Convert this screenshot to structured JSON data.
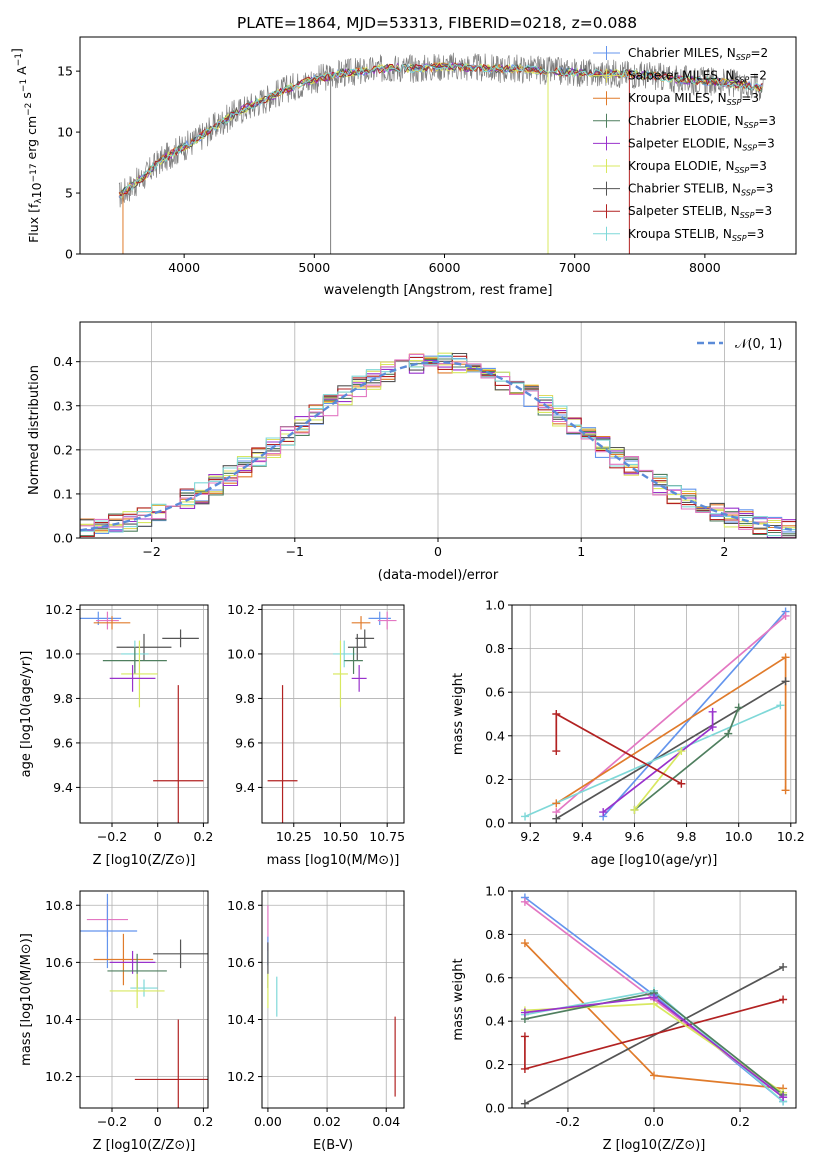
{
  "figure_title": "PLATE=1864, MJD=53313, FIBERID=0218, z=0.088",
  "colors": {
    "chabrier_miles": "#6495ED",
    "salpeter_miles": "#e0db5f",
    "kroupa_miles": "#e07b2b",
    "chabrier_elodie": "#4f7f5f",
    "salpeter_elodie": "#9932CC",
    "kroupa_elodie": "#d8e860",
    "chabrier_stelib": "#555555",
    "salpeter_stelib": "#b22222",
    "kroupa_stelib": "#7fd8d8",
    "pink": "#e377c2"
  },
  "chart_data": [
    {
      "id": "spectrum",
      "type": "line",
      "xlabel": "wavelength [Angstrom, rest frame]",
      "ylabel": "Flux [f_λ10^-17 erg cm^-2 s^-1 A^-1]",
      "xlim": [
        3200,
        8700
      ],
      "ylim": [
        0,
        17.8
      ],
      "xticks": [
        4000,
        5000,
        6000,
        7000,
        8000
      ],
      "yticks": [
        0,
        5,
        10,
        15
      ],
      "legend_position": "upper-right",
      "legend": [
        "Chabrier MILES, N_SSP=2",
        "Salpeter MILES, N_SSP=2",
        "Kroupa MILES, N_SSP=3",
        "Chabrier ELODIE, N_SSP=3",
        "Salpeter ELODIE, N_SSP=3",
        "Kroupa ELODIE, N_SSP=3",
        "Chabrier STELIB, N_SSP=3",
        "Salpeter STELIB, N_SSP=3",
        "Kroupa STELIB, N_SSP=3"
      ],
      "model_profile_x": [
        3500,
        3600,
        3700,
        3800,
        3900,
        4000,
        4100,
        4200,
        4300,
        4400,
        4600,
        4800,
        5000,
        5200,
        5400,
        5600,
        5800,
        6000,
        6200,
        6400,
        6600,
        6800,
        7000,
        7200,
        7400,
        7600,
        7800,
        8000,
        8200,
        8500
      ],
      "model_profile_y": [
        4.8,
        5.6,
        6.4,
        7.5,
        8.2,
        8.8,
        9.4,
        10.2,
        10.9,
        11.6,
        12.6,
        13.6,
        14.3,
        14.8,
        15.0,
        15.3,
        15.2,
        15.4,
        15.3,
        15.2,
        15.2,
        15.0,
        14.9,
        14.8,
        14.8,
        14.6,
        14.3,
        14.2,
        14.0,
        13.6
      ]
    },
    {
      "id": "residual_hist",
      "type": "line",
      "xlabel": "(data-model)/error",
      "ylabel": "Normed distribution",
      "xlim": [
        -2.5,
        2.5
      ],
      "ylim": [
        0,
        0.49
      ],
      "xticks": [
        -2,
        -1,
        0,
        1,
        2
      ],
      "yticks": [
        0.0,
        0.1,
        0.2,
        0.3,
        0.4
      ],
      "legend": [
        "𝒩(0, 1)"
      ],
      "legend_position": "upper-right",
      "grid": true
    },
    {
      "id": "age_vs_Z",
      "type": "scatter",
      "xlabel": "Z [log10(Z/Z⊙)]",
      "ylabel": "age [log10(age/yr)]",
      "xlim": [
        -0.34,
        0.22
      ],
      "ylim": [
        9.24,
        10.22
      ],
      "xticks": [
        -0.2,
        0.0,
        0.2
      ],
      "yticks": [
        9.4,
        9.6,
        9.8,
        10.0,
        10.2
      ],
      "grid": true,
      "points": [
        {
          "s": "chabrier_miles",
          "x": -0.26,
          "xerr": 0.1,
          "y": 10.16,
          "yerr": 0.03
        },
        {
          "s": "pink",
          "x": -0.22,
          "xerr": 0.05,
          "y": 10.15,
          "yerr": 0.04
        },
        {
          "s": "kroupa_miles",
          "x": -0.2,
          "xerr": 0.08,
          "y": 10.14,
          "yerr": 0.03
        },
        {
          "s": "chabrier_stelib",
          "x": 0.1,
          "xerr": 0.08,
          "y": 10.07,
          "yerr": 0.04
        },
        {
          "s": "chabrier_stelib",
          "x": -0.06,
          "xerr": 0.12,
          "y": 10.03,
          "yerr": 0.06
        },
        {
          "s": "kroupa_stelib",
          "x": -0.1,
          "xerr": 0.06,
          "y": 10.0,
          "yerr": 0.06
        },
        {
          "s": "chabrier_elodie",
          "x": -0.1,
          "xerr": 0.14,
          "y": 9.97,
          "yerr": 0.06
        },
        {
          "s": "kroupa_elodie",
          "x": -0.08,
          "xerr": 0.08,
          "y": 9.91,
          "yerr": 0.15
        },
        {
          "s": "salpeter_elodie",
          "x": -0.11,
          "xerr": 0.1,
          "y": 9.89,
          "yerr": 0.06
        },
        {
          "s": "salpeter_stelib",
          "x": 0.09,
          "xerr": 0.11,
          "y": 9.43,
          "yerr": 0.43
        }
      ]
    },
    {
      "id": "age_vs_mass",
      "type": "scatter",
      "xlabel": "mass [log10(M/M⊙)]",
      "xlim": [
        10.08,
        10.84
      ],
      "ylim": [
        9.24,
        10.22
      ],
      "xticks": [
        10.25,
        10.5,
        10.75
      ],
      "yticks": [
        9.4,
        9.6,
        9.8,
        10.0,
        10.2
      ],
      "grid": true,
      "points": [
        {
          "s": "chabrier_miles",
          "x": 10.71,
          "xerr": 0.06,
          "y": 10.16,
          "yerr": 0.03
        },
        {
          "s": "pink",
          "x": 10.75,
          "xerr": 0.05,
          "y": 10.15,
          "yerr": 0.04
        },
        {
          "s": "kroupa_miles",
          "x": 10.61,
          "xerr": 0.05,
          "y": 10.14,
          "yerr": 0.03
        },
        {
          "s": "chabrier_stelib",
          "x": 10.63,
          "xerr": 0.05,
          "y": 10.07,
          "yerr": 0.04
        },
        {
          "s": "chabrier_stelib",
          "x": 10.59,
          "xerr": 0.05,
          "y": 10.03,
          "yerr": 0.06
        },
        {
          "s": "kroupa_stelib",
          "x": 10.52,
          "xerr": 0.06,
          "y": 10.0,
          "yerr": 0.06
        },
        {
          "s": "chabrier_elodie",
          "x": 10.57,
          "xerr": 0.05,
          "y": 9.97,
          "yerr": 0.06
        },
        {
          "s": "kroupa_elodie",
          "x": 10.5,
          "xerr": 0.04,
          "y": 9.91,
          "yerr": 0.15
        },
        {
          "s": "salpeter_elodie",
          "x": 10.6,
          "xerr": 0.04,
          "y": 9.89,
          "yerr": 0.06
        },
        {
          "s": "salpeter_stelib",
          "x": 10.19,
          "xerr": 0.08,
          "y": 9.43,
          "yerr": 0.43
        }
      ]
    },
    {
      "id": "massweight_vs_age",
      "type": "line",
      "xlabel": "age [log10(age/yr)]",
      "ylabel": "mass weight",
      "xlim": [
        9.13,
        10.22
      ],
      "ylim": [
        0,
        1.0
      ],
      "xticks": [
        9.2,
        9.4,
        9.6,
        9.8,
        10.0,
        10.2
      ],
      "yticks": [
        0.0,
        0.2,
        0.4,
        0.6,
        0.8,
        1.0
      ],
      "grid": true,
      "series": [
        {
          "s": "chabrier_miles",
          "x": [
            9.48,
            10.18
          ],
          "y": [
            0.03,
            0.97
          ]
        },
        {
          "s": "pink",
          "x": [
            9.3,
            10.18
          ],
          "y": [
            0.05,
            0.95
          ]
        },
        {
          "s": "kroupa_miles",
          "x": [
            9.3,
            10.18,
            10.18
          ],
          "y": [
            0.09,
            0.76,
            0.15
          ]
        },
        {
          "s": "chabrier_stelib",
          "x": [
            9.3,
            10.18
          ],
          "y": [
            0.02,
            0.65
          ]
        },
        {
          "s": "kroupa_stelib",
          "x": [
            9.18,
            10.16
          ],
          "y": [
            0.03,
            0.54
          ]
        },
        {
          "s": "chabrier_elodie",
          "x": [
            9.6,
            9.96,
            10.0
          ],
          "y": [
            0.06,
            0.41,
            0.53
          ]
        },
        {
          "s": "salpeter_elodie",
          "x": [
            9.48,
            9.9,
            9.9
          ],
          "y": [
            0.05,
            0.44,
            0.51
          ]
        },
        {
          "s": "kroupa_elodie",
          "x": [
            9.6,
            9.78
          ],
          "y": [
            0.06,
            0.33
          ]
        },
        {
          "s": "salpeter_stelib",
          "x": [
            9.3,
            9.3,
            9.78
          ],
          "y": [
            0.33,
            0.5,
            0.18
          ]
        }
      ]
    },
    {
      "id": "mass_vs_Z",
      "type": "scatter",
      "xlabel": "Z [log10(Z/Z⊙)]",
      "ylabel": "mass [log10(M/M⊙)]",
      "xlim": [
        -0.34,
        0.22
      ],
      "ylim": [
        10.09,
        10.85
      ],
      "xticks": [
        -0.2,
        0.0,
        0.2
      ],
      "yticks": [
        10.2,
        10.4,
        10.6,
        10.8
      ],
      "grid": true,
      "points": [
        {
          "s": "pink",
          "x": -0.22,
          "xerr": 0.09,
          "y": 10.75,
          "yerr": 0.06
        },
        {
          "s": "chabrier_miles",
          "x": -0.22,
          "xerr": 0.13,
          "y": 10.71,
          "yerr": 0.13
        },
        {
          "s": "chabrier_stelib",
          "x": 0.1,
          "xerr": 0.12,
          "y": 10.63,
          "yerr": 0.05
        },
        {
          "s": "kroupa_miles",
          "x": -0.15,
          "xerr": 0.13,
          "y": 10.61,
          "yerr": 0.09
        },
        {
          "s": "salpeter_elodie",
          "x": -0.11,
          "xerr": 0.1,
          "y": 10.6,
          "yerr": 0.04
        },
        {
          "s": "chabrier_elodie",
          "x": -0.09,
          "xerr": 0.13,
          "y": 10.57,
          "yerr": 0.06
        },
        {
          "s": "kroupa_stelib",
          "x": -0.06,
          "xerr": 0.06,
          "y": 10.51,
          "yerr": 0.03
        },
        {
          "s": "kroupa_elodie",
          "x": -0.09,
          "xerr": 0.12,
          "y": 10.5,
          "yerr": 0.06
        },
        {
          "s": "salpeter_stelib",
          "x": 0.09,
          "xerr": 0.19,
          "y": 10.19,
          "yerr": 0.21
        }
      ]
    },
    {
      "id": "mass_vs_ebv",
      "type": "scatter",
      "xlabel": "E(B-V)",
      "xlim": [
        -0.002,
        0.046
      ],
      "ylim": [
        10.09,
        10.85
      ],
      "xticks": [
        0.0,
        0.02,
        0.04
      ],
      "yticks": [
        10.2,
        10.4,
        10.6,
        10.8
      ],
      "grid": true,
      "points": [
        {
          "s": "pink",
          "x": 0.0,
          "y": 10.72,
          "yerr": 0.08
        },
        {
          "s": "chabrier_miles",
          "x": 0.0,
          "y": 10.64,
          "yerr": 0.05
        },
        {
          "s": "chabrier_stelib",
          "x": 0.0,
          "y": 10.59,
          "yerr": 0.08
        },
        {
          "s": "kroupa_elodie",
          "x": 0.0,
          "y": 10.5,
          "yerr": 0.06
        },
        {
          "s": "kroupa_stelib",
          "x": 0.003,
          "y": 10.48,
          "yerr": 0.07
        },
        {
          "s": "salpeter_stelib",
          "x": 0.043,
          "y": 10.27,
          "yerr": 0.14
        }
      ]
    },
    {
      "id": "massweight_vs_Z",
      "type": "line",
      "xlabel": "Z [log10(Z/Z⊙)]",
      "ylabel": "mass weight",
      "xlim": [
        -0.33,
        0.33
      ],
      "ylim": [
        0,
        1.0
      ],
      "xticks": [
        -0.2,
        0.0,
        0.2
      ],
      "yticks": [
        0.0,
        0.2,
        0.4,
        0.6,
        0.8,
        1.0
      ],
      "grid": true,
      "series": [
        {
          "s": "chabrier_miles",
          "x": [
            -0.3,
            0.0,
            0.3
          ],
          "y": [
            0.97,
            0.52,
            0.03
          ]
        },
        {
          "s": "pink",
          "x": [
            -0.3,
            0.0,
            0.3
          ],
          "y": [
            0.95,
            0.5,
            0.05
          ]
        },
        {
          "s": "kroupa_miles",
          "x": [
            -0.3,
            0.0,
            0.3
          ],
          "y": [
            0.76,
            0.15,
            0.09
          ]
        },
        {
          "s": "chabrier_stelib",
          "x": [
            -0.3,
            0.3
          ],
          "y": [
            0.02,
            0.65
          ]
        },
        {
          "s": "salpeter_stelib",
          "x": [
            -0.3,
            -0.3,
            0.3
          ],
          "y": [
            0.33,
            0.18,
            0.5
          ]
        },
        {
          "s": "kroupa_elodie",
          "x": [
            -0.3,
            0.0,
            0.3
          ],
          "y": [
            0.45,
            0.48,
            0.07
          ]
        },
        {
          "s": "kroupa_stelib",
          "x": [
            -0.3,
            0.0,
            0.3
          ],
          "y": [
            0.43,
            0.54,
            0.03
          ]
        },
        {
          "s": "chabrier_elodie",
          "x": [
            -0.3,
            0.0,
            0.3
          ],
          "y": [
            0.41,
            0.53,
            0.06
          ]
        },
        {
          "s": "salpeter_elodie",
          "x": [
            -0.3,
            0.0,
            0.3
          ],
          "y": [
            0.44,
            0.51,
            0.05
          ]
        }
      ]
    }
  ]
}
